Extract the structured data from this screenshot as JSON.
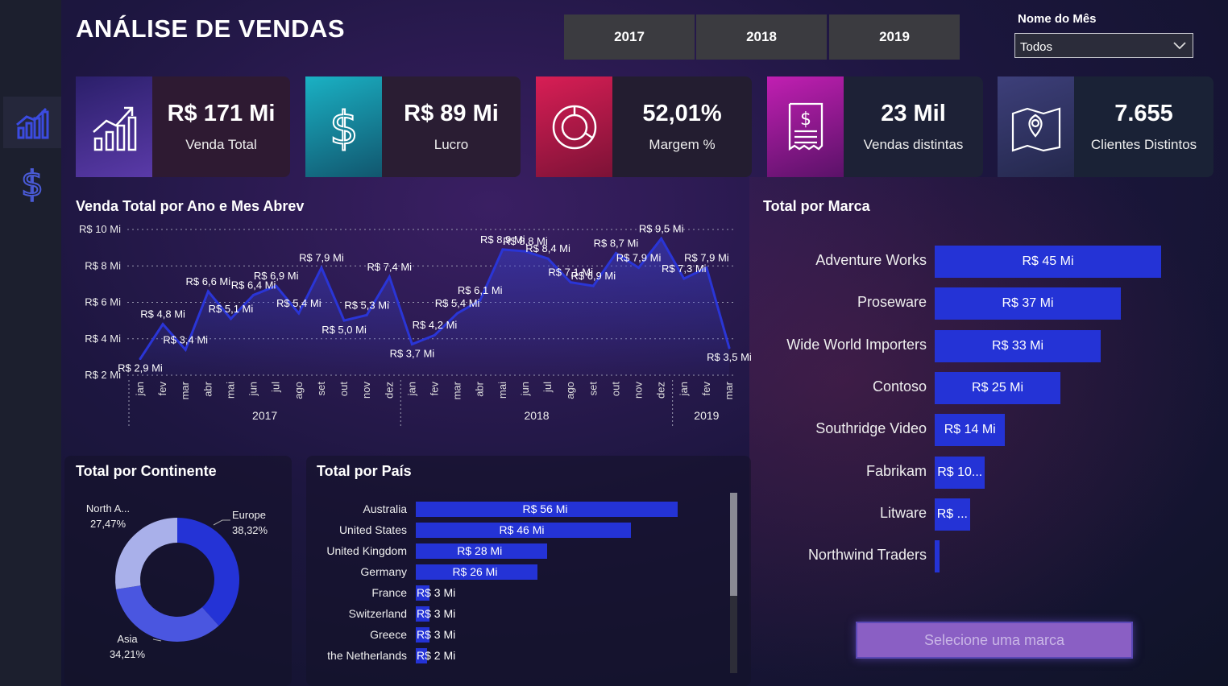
{
  "title": "ANÁLISE DE VENDAS",
  "years": [
    "2017",
    "2018",
    "2019"
  ],
  "month_filter": {
    "label": "Nome do Mês",
    "value": "Todos"
  },
  "kpis": [
    {
      "value": "R$ 171 Mi",
      "label": "Venda Total",
      "icon": "growth-chart-icon",
      "color": "#4a2f8f"
    },
    {
      "value": "R$ 89 Mi",
      "label": "Lucro",
      "icon": "dollar-icon",
      "color": "#1aa4b8"
    },
    {
      "value": "52,01%",
      "label": "Margem %",
      "icon": "donut-icon",
      "color": "#c01d52"
    },
    {
      "value": "23 Mil",
      "label": "Vendas distintas",
      "icon": "receipt-icon",
      "color": "#b11aa0"
    },
    {
      "value": "7.655",
      "label": "Clientes Distintos",
      "icon": "map-pin-icon",
      "color": "#3a3f72"
    }
  ],
  "line_title": "Venda Total por Ano e Mes Abrev",
  "pais_title": "Total por País",
  "continente_title": "Total por Continente",
  "marca_title": "Total por Marca",
  "select_brand": "Selecione uma marca",
  "chart_data": [
    {
      "type": "line",
      "title": "Venda Total por Ano e Mes Abrev",
      "y_ticks": [
        "R$ 10 Mi",
        "R$ 8 Mi",
        "R$ 6 Mi",
        "R$ 4 Mi",
        "R$ 2 Mi"
      ],
      "ylim": [
        2,
        10
      ],
      "months": [
        "jan",
        "fev",
        "mar",
        "abr",
        "mai",
        "jun",
        "jul",
        "ago",
        "set",
        "out",
        "nov",
        "dez",
        "jan",
        "fev",
        "mar",
        "abr",
        "mai",
        "jun",
        "jul",
        "ago",
        "set",
        "out",
        "nov",
        "dez",
        "jan",
        "fev",
        "mar"
      ],
      "years": [
        "2017",
        "2018",
        "2019"
      ],
      "values": [
        2.9,
        4.8,
        3.4,
        6.6,
        5.1,
        6.4,
        6.9,
        5.4,
        7.9,
        5.0,
        5.3,
        7.4,
        3.7,
        4.2,
        5.4,
        6.1,
        8.9,
        8.8,
        8.4,
        7.1,
        6.9,
        8.7,
        7.9,
        9.5,
        7.3,
        7.9,
        3.5
      ],
      "labels": [
        "R$ 2,9 Mi",
        "R$ 4,8 Mi",
        "R$ 3,4 Mi",
        "R$ 6,6 Mi",
        "R$ 5,1 Mi",
        "R$ 6,4 Mi",
        "R$ 6,9 Mi",
        "R$ 5,4 Mi",
        "R$ 7,9 Mi",
        "R$ 5,0 Mi",
        "R$ 5,3 Mi",
        "R$ 7,4 Mi",
        "R$ 3,7 Mi",
        "R$ 4,2 Mi",
        "R$ 5,4 Mi",
        "R$ 6,1 Mi",
        "R$ 8,9 Mi",
        "R$ 8,8 Mi",
        "R$ 8,4 Mi",
        "R$ 7,1 Mi",
        "R$ 6,9 Mi",
        "R$ 8,7 Mi",
        "R$ 7,9 Mi",
        "R$ 9,5 Mi",
        "R$ 7,3 Mi",
        "R$ 7,9 Mi",
        "R$ 3,5 Mi"
      ]
    },
    {
      "type": "pie",
      "title": "Total por Continente",
      "slices": [
        {
          "name": "Europe",
          "pct": 38.32,
          "label": "38,32%",
          "color": "#2433d6"
        },
        {
          "name": "Asia",
          "pct": 34.21,
          "label": "34,21%",
          "color": "#4a56e0"
        },
        {
          "name": "North A...",
          "pct": 27.47,
          "label": "27,47%",
          "color": "#a9b0ea"
        }
      ]
    },
    {
      "type": "bar",
      "title": "Total por País",
      "categories": [
        "Australia",
        "United States",
        "United Kingdom",
        "Germany",
        "France",
        "Switzerland",
        "Greece",
        "the Netherlands"
      ],
      "values": [
        56,
        46,
        28,
        26,
        3,
        3,
        3,
        2
      ],
      "labels": [
        "R$ 56 Mi",
        "R$ 46 Mi",
        "R$ 28 Mi",
        "R$ 26 Mi",
        "R$ 3 Mi",
        "R$ 3 Mi",
        "R$ 3 Mi",
        "R$ 2 Mi"
      ]
    },
    {
      "type": "bar",
      "title": "Total por Marca",
      "categories": [
        "Adventure Works",
        "Proseware",
        "Wide World Importers",
        "Contoso",
        "Southridge Video",
        "Fabrikam",
        "Litware",
        "Northwind Traders"
      ],
      "values": [
        45,
        37,
        33,
        25,
        14,
        10,
        7,
        1
      ],
      "labels": [
        "R$ 45 Mi",
        "R$ 37 Mi",
        "R$ 33 Mi",
        "R$ 25 Mi",
        "R$ 14 Mi",
        "R$ 10...",
        "R$ ...",
        ""
      ]
    }
  ]
}
